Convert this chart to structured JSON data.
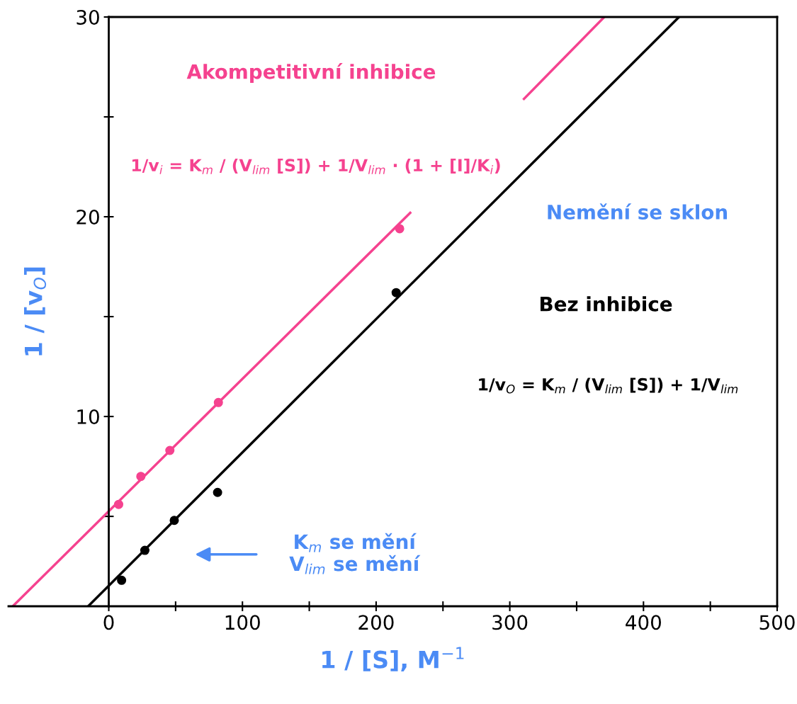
{
  "chart_data": {
    "type": "scatter",
    "xlabel": "1 / [S], M$^{−1}$",
    "ylabel": "1 / [v$_{O}$]",
    "xlim": [
      -75,
      500
    ],
    "ylim": [
      0.5,
      30
    ],
    "xticks": [
      0,
      {
        "value": 50,
        "label": null
      },
      100,
      {
        "value": 150,
        "label": null
      },
      200,
      {
        "value": 250,
        "label": null
      },
      300,
      {
        "value": 350,
        "label": null
      },
      400,
      {
        "value": 450,
        "label": null
      },
      500
    ],
    "yticks": [
      {
        "value": 5,
        "label": null
      },
      10,
      {
        "value": 15,
        "label": null
      },
      20,
      {
        "value": 25,
        "label": null
      },
      30
    ],
    "grid": false,
    "series": [
      {
        "marker": "circle",
        "color": "#f5428f",
        "x": [
          7.4,
          24,
          45.7,
          82,
          217.6
        ],
        "values": [
          5.6,
          7.0,
          8.3,
          10.7,
          19.4
        ]
      },
      {
        "type": "line",
        "marker": "none",
        "color": "#f5428f",
        "x": [
          -71.8,
          225.5,
          null,
          310.6,
          370.7
        ],
        "values": [
          0.5,
          20.2,
          null,
          25.9,
          30
        ]
      },
      {
        "marker": "circle",
        "color": "#000000",
        "x": [
          9.6,
          27,
          49,
          81.4,
          215
        ],
        "values": [
          1.8,
          3.3,
          4.8,
          6.2,
          16.2
        ]
      },
      {
        "type": "line",
        "marker": "none",
        "color": "#000000",
        "x": [
          -15.4,
          426.6
        ],
        "values": [
          0.5,
          30
        ]
      }
    ],
    "annotations": [
      "Akompetitivní inhibice",
      "1/v$_{i}$ = K$_{m}$ / (V$_{lim}$ [S]) + 1/V$_{lim}$ · (1 + [I]/K$_{i}$)",
      "Nemění se sklon",
      "Bez inhibice",
      "1/v$_{O}$ = K$_{m}$ / (V$_{lim}$ [S]) + 1/V$_{lim}$",
      "K$_{m}$ se mění\nV$_{lim}$ se mění"
    ]
  }
}
